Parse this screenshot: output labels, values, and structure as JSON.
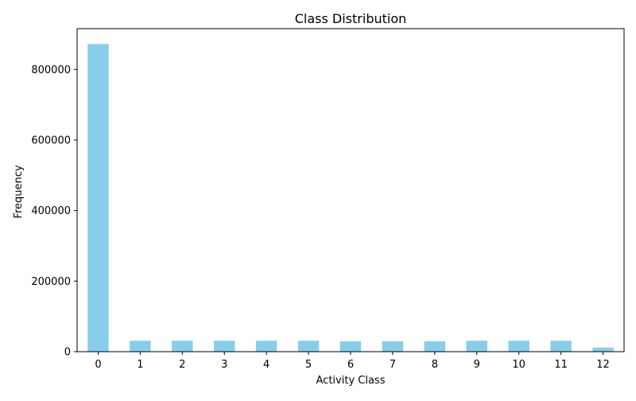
{
  "chart_data": {
    "type": "bar",
    "title": "Class Distribution",
    "xlabel": "Activity Class",
    "ylabel": "Frequency",
    "categories": [
      "0",
      "1",
      "2",
      "3",
      "4",
      "5",
      "6",
      "7",
      "8",
      "9",
      "10",
      "11",
      "12"
    ],
    "values": [
      872000,
      31000,
      31000,
      31000,
      31000,
      31000,
      29500,
      29500,
      29500,
      31000,
      31000,
      31000,
      11500
    ],
    "ylim": [
      0,
      915600
    ],
    "yticks": [
      0,
      200000,
      400000,
      600000,
      800000
    ],
    "ytick_labels": [
      "0",
      "200000",
      "400000",
      "600000",
      "800000"
    ],
    "bar_color": "#87ceeb",
    "grid": false,
    "legend": "none"
  }
}
